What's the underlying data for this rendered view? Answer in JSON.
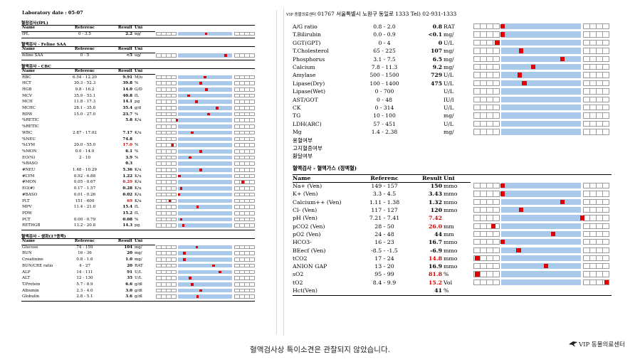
{
  "left": {
    "lab_date": "Laboratory date : 05-07",
    "headers": {
      "name": "Name",
      "ref": "Referenc",
      "result": "Result",
      "unit": "Uni"
    },
    "sections": [
      {
        "title": "혈장검사(fPL)",
        "rows": [
          {
            "name": "fPL",
            "ref": "0 - 3.5",
            "result": "2.2",
            "unit": "ng/",
            "red": false,
            "marker": 0.52
          }
        ]
      },
      {
        "title": "혈액검사 - Feline SAA",
        "rows": [
          {
            "name": "feline SAA",
            "ref": "0 - 5",
            "result": "<5",
            "unit": "ug/",
            "red": false,
            "marker": 0.88
          }
        ]
      },
      {
        "title": "혈액검사 - CBC",
        "rows": [
          {
            "name": "RBC",
            "ref": "6.54 - 12.20",
            "result": "9.91",
            "unit": "M/u",
            "red": false,
            "marker": 0.5
          },
          {
            "name": "HCT",
            "ref": "30.3 - 52.3",
            "result": "39.8",
            "unit": "%",
            "red": false,
            "marker": 0.42
          },
          {
            "name": "HGB",
            "ref": "9.8 - 16.2",
            "result": "14.0",
            "unit": "G/D",
            "red": false,
            "marker": 0.53
          },
          {
            "name": "MCV",
            "ref": "35.9 - 53.1",
            "result": "40.8",
            "unit": "fL",
            "red": false,
            "marker": 0.2
          },
          {
            "name": "MCH",
            "ref": "11.8 - 17.3",
            "result": "14.1",
            "unit": "pg",
            "red": false,
            "marker": 0.34
          },
          {
            "name": "MCHC",
            "ref": "28.1 - 35.8",
            "result": "35.4",
            "unit": "g/d",
            "red": false,
            "marker": 0.72
          },
          {
            "name": "RDW",
            "ref": "15.0 - 27.0",
            "result": "23.7",
            "unit": "%",
            "red": false,
            "marker": 0.57
          },
          {
            "name": "%RETIC",
            "ref": "",
            "result": "5.8",
            "unit": "K/u",
            "red": false,
            "marker": -0.02
          },
          {
            "name": "%RETIC",
            "ref": "",
            "result": "",
            "unit": "",
            "red": false,
            "marker": null
          },
          {
            "name": "WBC",
            "ref": "2.87 - 17.02",
            "result": "7.17",
            "unit": "K/u",
            "red": false,
            "marker": 0.26
          },
          {
            "name": "%NEU",
            "ref": "",
            "result": "74.8",
            "unit": "",
            "red": false,
            "marker": null
          },
          {
            "name": "%LYM",
            "ref": "20.0 - 55.0",
            "result": "17.0",
            "unit": "%",
            "red": true,
            "marker": -0.1
          },
          {
            "name": "%MON",
            "ref": "0.0 - 14.0",
            "result": "6.1",
            "unit": "%",
            "red": false,
            "marker": 0.42
          },
          {
            "name": "EO(%)",
            "ref": "2 - 10",
            "result": "3.9",
            "unit": "%",
            "red": false,
            "marker": 0.22
          },
          {
            "name": "%BASO",
            "ref": "",
            "result": "0.3",
            "unit": "",
            "red": false,
            "marker": null
          },
          {
            "name": "#NEU",
            "ref": "1.48 - 10.29",
            "result": "5.36",
            "unit": "K/u",
            "red": false,
            "marker": 0.42
          },
          {
            "name": "#LYM",
            "ref": "0.92 - 6.88",
            "result": "1.22",
            "unit": "K/u",
            "red": false,
            "marker": 0.03
          },
          {
            "name": "#MON",
            "ref": "0.05 - 0.67",
            "result": "0.29",
            "unit": "K/u",
            "red": true,
            "marker": 1.2
          },
          {
            "name": "EO(#)",
            "ref": "0.17 - 1.57",
            "result": "0.28",
            "unit": "K/u",
            "red": false,
            "marker": 0.06
          },
          {
            "name": "#BASO",
            "ref": "0.01 - 0.26",
            "result": "0.02",
            "unit": "K/u",
            "red": false,
            "marker": 0.02
          },
          {
            "name": "PLT",
            "ref": "151 - 600",
            "result": "69",
            "unit": "K/u",
            "red": true,
            "marker": -0.15
          },
          {
            "name": "MPV",
            "ref": "11.4 - 21.0",
            "result": "15.4",
            "unit": "fL",
            "red": false,
            "marker": 0.36
          },
          {
            "name": "PDW",
            "ref": "",
            "result": "15.2",
            "unit": "fL",
            "red": false,
            "marker": null
          },
          {
            "name": "PCT",
            "ref": "0.00 - 0.79",
            "result": "0.08",
            "unit": "%",
            "red": false,
            "marker": 0.06
          },
          {
            "name": "RETHGB",
            "ref": "13.2 - 20.8",
            "result": "14.3",
            "unit": "pg",
            "red": false,
            "marker": 0.1
          }
        ]
      },
      {
        "title": "혈액검사 - 생화(17종목)",
        "rows": [
          {
            "name": "Glucose",
            "ref": "74 - 159",
            "result": "104",
            "unit": "mg/",
            "red": false,
            "marker": 0.35
          },
          {
            "name": "BUN",
            "ref": "16 - 36",
            "result": "20",
            "unit": "mg/",
            "red": false,
            "marker": 0.12
          },
          {
            "name": "Creatinine",
            "ref": "0.8 - 1.6",
            "result": "1.0",
            "unit": "mg/",
            "red": false,
            "marker": 0.12
          },
          {
            "name": "BUN/CRE ratio",
            "ref": "4 - 27",
            "result": "20",
            "unit": "RAT",
            "red": false,
            "marker": 0.66
          },
          {
            "name": "ALP",
            "ref": "14 - 111",
            "result": "91",
            "unit": "U/L",
            "red": false,
            "marker": 0.78
          },
          {
            "name": "ALT",
            "ref": "12 - 130",
            "result": "35",
            "unit": "U/L",
            "red": false,
            "marker": 0.22
          },
          {
            "name": "T.Protein",
            "ref": "5.7 - 8.9",
            "result": "6.6",
            "unit": "g/dl",
            "red": false,
            "marker": 0.26
          },
          {
            "name": "Albumin",
            "ref": "2.3 - 4.0",
            "result": "3.0",
            "unit": "g/dl",
            "red": false,
            "marker": 0.42
          },
          {
            "name": "Globulin",
            "ref": "2.8 - 5.1",
            "result": "3.6",
            "unit": "g/dl",
            "red": false,
            "marker": 0.36
          }
        ]
      }
    ]
  },
  "right": {
    "header_hospital": "VIP 동물의료센터",
    "header_info": "01767 서울특별시 노원구 동일로 1333 Tel) 02-931-1333",
    "header_corner": "",
    "top_rows": [
      {
        "name": "A/G ratio",
        "ref": "0.8 - 2.0",
        "result": "0.8",
        "unit": "RAT",
        "red": false,
        "marker": 0.02,
        "lt": ""
      },
      {
        "name": "T.Bilirubin",
        "ref": "0.0 - 0.9",
        "result": "0.1",
        "unit": "mg/",
        "red": false,
        "marker": 0.02,
        "lt": "<"
      },
      {
        "name": "GGT(GPT)",
        "ref": "0 - 4",
        "result": "0",
        "unit": "U/L",
        "red": false,
        "marker": -0.05,
        "lt": ""
      },
      {
        "name": "T.Cholesterol",
        "ref": "65 - 225",
        "result": "107",
        "unit": "mg/",
        "red": false,
        "marker": 0.25,
        "lt": ""
      },
      {
        "name": "Phosphorus",
        "ref": "3.1 - 7.5",
        "result": "6.5",
        "unit": "mg/",
        "red": false,
        "marker": 0.77,
        "lt": ""
      },
      {
        "name": "Calcium",
        "ref": "7.8 - 11.3",
        "result": "9.2",
        "unit": "mg/",
        "red": false,
        "marker": 0.4,
        "lt": ""
      },
      {
        "name": "Amylase",
        "ref": "500 - 1500",
        "result": "729",
        "unit": "U/L",
        "red": false,
        "marker": 0.23,
        "lt": ""
      },
      {
        "name": "Lipase(Dry)",
        "ref": "100 - 1400",
        "result": "475",
        "unit": "U/L",
        "red": false,
        "marker": 0.29,
        "lt": ""
      },
      {
        "name": "Lipase(Wet)",
        "ref": "0 - 700",
        "result": "",
        "unit": "U/L",
        "red": false,
        "marker": null,
        "lt": ""
      },
      {
        "name": "AST/GOT",
        "ref": "0 - 48",
        "result": "",
        "unit": "IU/l",
        "red": false,
        "marker": null,
        "lt": ""
      },
      {
        "name": "CK",
        "ref": "0 - 314",
        "result": "",
        "unit": "U/L",
        "red": false,
        "marker": null,
        "lt": ""
      },
      {
        "name": "TG",
        "ref": "10 - 100",
        "result": "",
        "unit": "mg/",
        "red": false,
        "marker": null,
        "lt": ""
      },
      {
        "name": "LDH(ARC)",
        "ref": "57 - 451",
        "result": "",
        "unit": "U/L",
        "red": false,
        "marker": null,
        "lt": ""
      },
      {
        "name": "Mg",
        "ref": "1.4 - 2.38",
        "result": "",
        "unit": "mg/",
        "red": false,
        "marker": null,
        "lt": ""
      },
      {
        "name": "용혈여부",
        "ref": "",
        "result": "",
        "unit": "",
        "red": false,
        "marker": null,
        "lt": "",
        "noTrack": true
      },
      {
        "name": "고지혈증여부",
        "ref": "",
        "result": "",
        "unit": "",
        "red": false,
        "marker": null,
        "lt": "",
        "noTrack": true
      },
      {
        "name": "황달여부",
        "ref": "",
        "result": "",
        "unit": "",
        "red": false,
        "marker": null,
        "lt": "",
        "noTrack": true
      }
    ],
    "gas_title": "혈액검사 - 혈액가스 (정맥혈)",
    "headers": {
      "name": "Name",
      "ref": "Referenc",
      "result": "Result",
      "unit": "Uni"
    },
    "gas_rows": [
      {
        "name": "Na+ (Ven)",
        "ref": "149 - 157",
        "result": "150",
        "unit": "mmo",
        "red": false,
        "marker": 0.02
      },
      {
        "name": "K+ (Ven)",
        "ref": "3.3 - 4.5",
        "result": "3.43",
        "unit": "mmo",
        "red": false,
        "marker": 0.02
      },
      {
        "name": "Calcium++ (Ven)",
        "ref": "1.11 - 1.38",
        "result": "1.32",
        "unit": "mmo",
        "red": false,
        "marker": 0.77
      },
      {
        "name": "Cl- (Ven)",
        "ref": "117 - 127",
        "result": "120",
        "unit": "mmo",
        "red": false,
        "marker": 0.25
      },
      {
        "name": "pH (Ven)",
        "ref": "7.21 - 7.41",
        "result": "7.42",
        "unit": "",
        "red": true,
        "marker": 1.02
      },
      {
        "name": "pCO2 (Ven)",
        "ref": "28 - 50",
        "result": "26.0",
        "unit": "mm",
        "red": true,
        "marker": -0.1
      },
      {
        "name": "pO2 (Ven)",
        "ref": "24 - 48",
        "result": "44",
        "unit": "mm",
        "red": false,
        "marker": 0.65
      },
      {
        "name": "HCO3-",
        "ref": "16 - 23",
        "result": "16.7",
        "unit": "mmo",
        "red": false,
        "marker": 0.02
      },
      {
        "name": "BEecf (Ven)",
        "ref": "-8.5 - -1.5",
        "result": "-6.9",
        "unit": "mmo",
        "red": false,
        "marker": 0.22
      },
      {
        "name": "tCO2",
        "ref": "17 - 24",
        "result": "14.8",
        "unit": "mmo",
        "red": true,
        "marker": -0.3
      },
      {
        "name": "ANION GAP",
        "ref": "13 - 20",
        "result": "16.9",
        "unit": "mmo",
        "red": false,
        "marker": 0.56
      },
      {
        "name": "sO2",
        "ref": "95 - 99",
        "result": "81.8",
        "unit": "%",
        "red": true,
        "marker": -0.3
      },
      {
        "name": "tO2",
        "ref": "8.4 - 9.9",
        "result": "15.2",
        "unit": "Vol",
        "red": true,
        "marker": 1.35
      },
      {
        "name": "Hct(Ven)",
        "ref": "",
        "result": "41",
        "unit": "%",
        "red": false,
        "marker": null,
        "noTrack": true
      }
    ]
  },
  "footer_note": "혈액검사상 특이소견은 관찰되지 않았습니다.",
  "logo_text": "VIP 동물의료센터",
  "colors": {
    "band": "#a9c8ea",
    "marker": "#e00000",
    "abnormal_text": "#d40000",
    "cell_border": "#9a9a9a"
  }
}
